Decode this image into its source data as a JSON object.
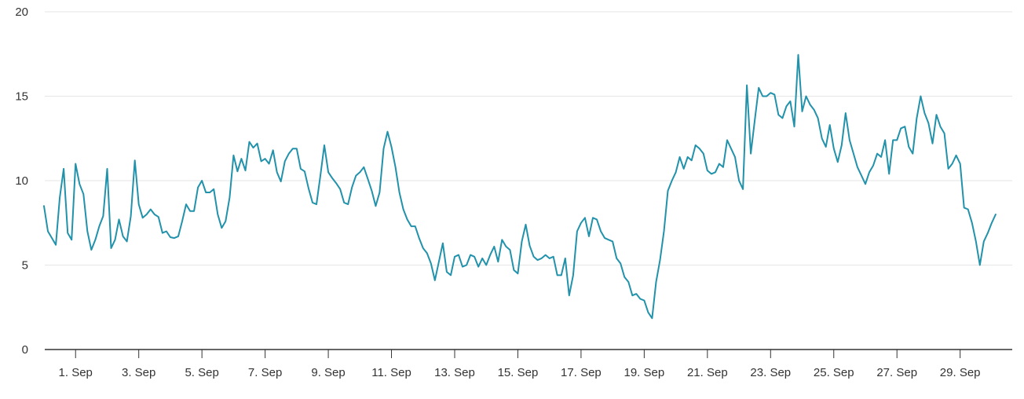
{
  "chart_data": {
    "type": "line",
    "title": "",
    "xlabel": "",
    "ylabel": "",
    "legend": false,
    "grid": true,
    "ylim": [
      0,
      20
    ],
    "y_ticks": [
      {
        "value": 0,
        "label": "0"
      },
      {
        "value": 5,
        "label": "5"
      },
      {
        "value": 10,
        "label": "10"
      },
      {
        "value": 15,
        "label": "15"
      },
      {
        "value": 20,
        "label": "20"
      }
    ],
    "x_ticks": [
      {
        "day": 1,
        "label": "1. Sep"
      },
      {
        "day": 3,
        "label": "3. Sep"
      },
      {
        "day": 5,
        "label": "5. Sep"
      },
      {
        "day": 7,
        "label": "7. Sep"
      },
      {
        "day": 9,
        "label": "9. Sep"
      },
      {
        "day": 11,
        "label": "11. Sep"
      },
      {
        "day": 13,
        "label": "13. Sep"
      },
      {
        "day": 15,
        "label": "15. Sep"
      },
      {
        "day": 17,
        "label": "17. Sep"
      },
      {
        "day": 19,
        "label": "19. Sep"
      },
      {
        "day": 21,
        "label": "21. Sep"
      },
      {
        "day": 23,
        "label": "23. Sep"
      },
      {
        "day": 25,
        "label": "25. Sep"
      },
      {
        "day": 27,
        "label": "27. Sep"
      },
      {
        "day": 29,
        "label": "29. Sep"
      }
    ],
    "x_start_day": 0,
    "x_step_days": 0.125,
    "colors": {
      "line": "#2292ab",
      "grid": "#e6e6e6",
      "axis": "#333333",
      "label": "#333333",
      "background": "#ffffff"
    },
    "values": [
      8.5,
      7.0,
      6.6,
      6.2,
      9.0,
      10.7,
      6.9,
      6.5,
      11.0,
      9.8,
      9.2,
      7.0,
      5.9,
      6.5,
      7.3,
      7.9,
      10.7,
      6.0,
      6.5,
      7.7,
      6.7,
      6.4,
      7.9,
      11.2,
      8.6,
      7.8,
      8.0,
      8.3,
      8.0,
      7.85,
      6.9,
      7.0,
      6.65,
      6.6,
      6.7,
      7.6,
      8.6,
      8.2,
      8.2,
      9.6,
      10.0,
      9.3,
      9.3,
      9.5,
      8.0,
      7.2,
      7.6,
      9.0,
      11.5,
      10.55,
      11.3,
      10.6,
      12.3,
      11.95,
      12.2,
      11.15,
      11.3,
      11.0,
      11.8,
      10.5,
      9.95,
      11.15,
      11.6,
      11.9,
      11.9,
      10.7,
      10.55,
      9.55,
      8.7,
      8.6,
      10.3,
      12.1,
      10.5,
      10.15,
      9.85,
      9.5,
      8.7,
      8.6,
      9.6,
      10.3,
      10.5,
      10.8,
      10.1,
      9.4,
      8.5,
      9.3,
      11.9,
      12.9,
      12.0,
      10.8,
      9.3,
      8.3,
      7.7,
      7.3,
      7.3,
      6.6,
      6.0,
      5.7,
      5.1,
      4.1,
      5.2,
      6.3,
      4.6,
      4.4,
      5.5,
      5.6,
      4.9,
      5.0,
      5.6,
      5.5,
      4.9,
      5.4,
      5.0,
      5.6,
      6.1,
      5.2,
      6.5,
      6.1,
      5.9,
      4.7,
      4.5,
      6.4,
      7.4,
      6.15,
      5.5,
      5.3,
      5.4,
      5.6,
      5.4,
      5.5,
      4.4,
      4.4,
      5.4,
      3.2,
      4.4,
      7.0,
      7.5,
      7.8,
      6.7,
      7.8,
      7.7,
      7.0,
      6.6,
      6.5,
      6.4,
      5.4,
      5.1,
      4.3,
      4.0,
      3.2,
      3.3,
      3.0,
      2.9,
      2.2,
      1.85,
      4.0,
      5.3,
      7.0,
      9.4,
      10.0,
      10.5,
      11.4,
      10.7,
      11.4,
      11.2,
      12.1,
      11.9,
      11.6,
      10.6,
      10.4,
      10.5,
      11.0,
      10.8,
      12.4,
      11.9,
      11.4,
      10.0,
      9.5,
      15.65,
      11.6,
      13.6,
      15.5,
      15.0,
      15.0,
      15.2,
      15.1,
      13.9,
      13.7,
      14.4,
      14.7,
      13.2,
      17.45,
      14.1,
      15.0,
      14.5,
      14.2,
      13.7,
      12.5,
      12.0,
      13.3,
      11.9,
      11.1,
      12.1,
      14.0,
      12.4,
      11.6,
      10.8,
      10.3,
      9.8,
      10.5,
      10.9,
      11.6,
      11.4,
      12.4,
      10.4,
      12.4,
      12.4,
      13.1,
      13.2,
      12.0,
      11.6,
      13.7,
      15.0,
      14.0,
      13.4,
      12.2,
      13.9,
      13.2,
      12.8,
      10.7,
      11.0,
      11.5,
      11.0,
      8.4,
      8.3,
      7.5,
      6.4,
      5.0,
      6.4,
      6.9,
      7.5,
      8.0
    ]
  }
}
